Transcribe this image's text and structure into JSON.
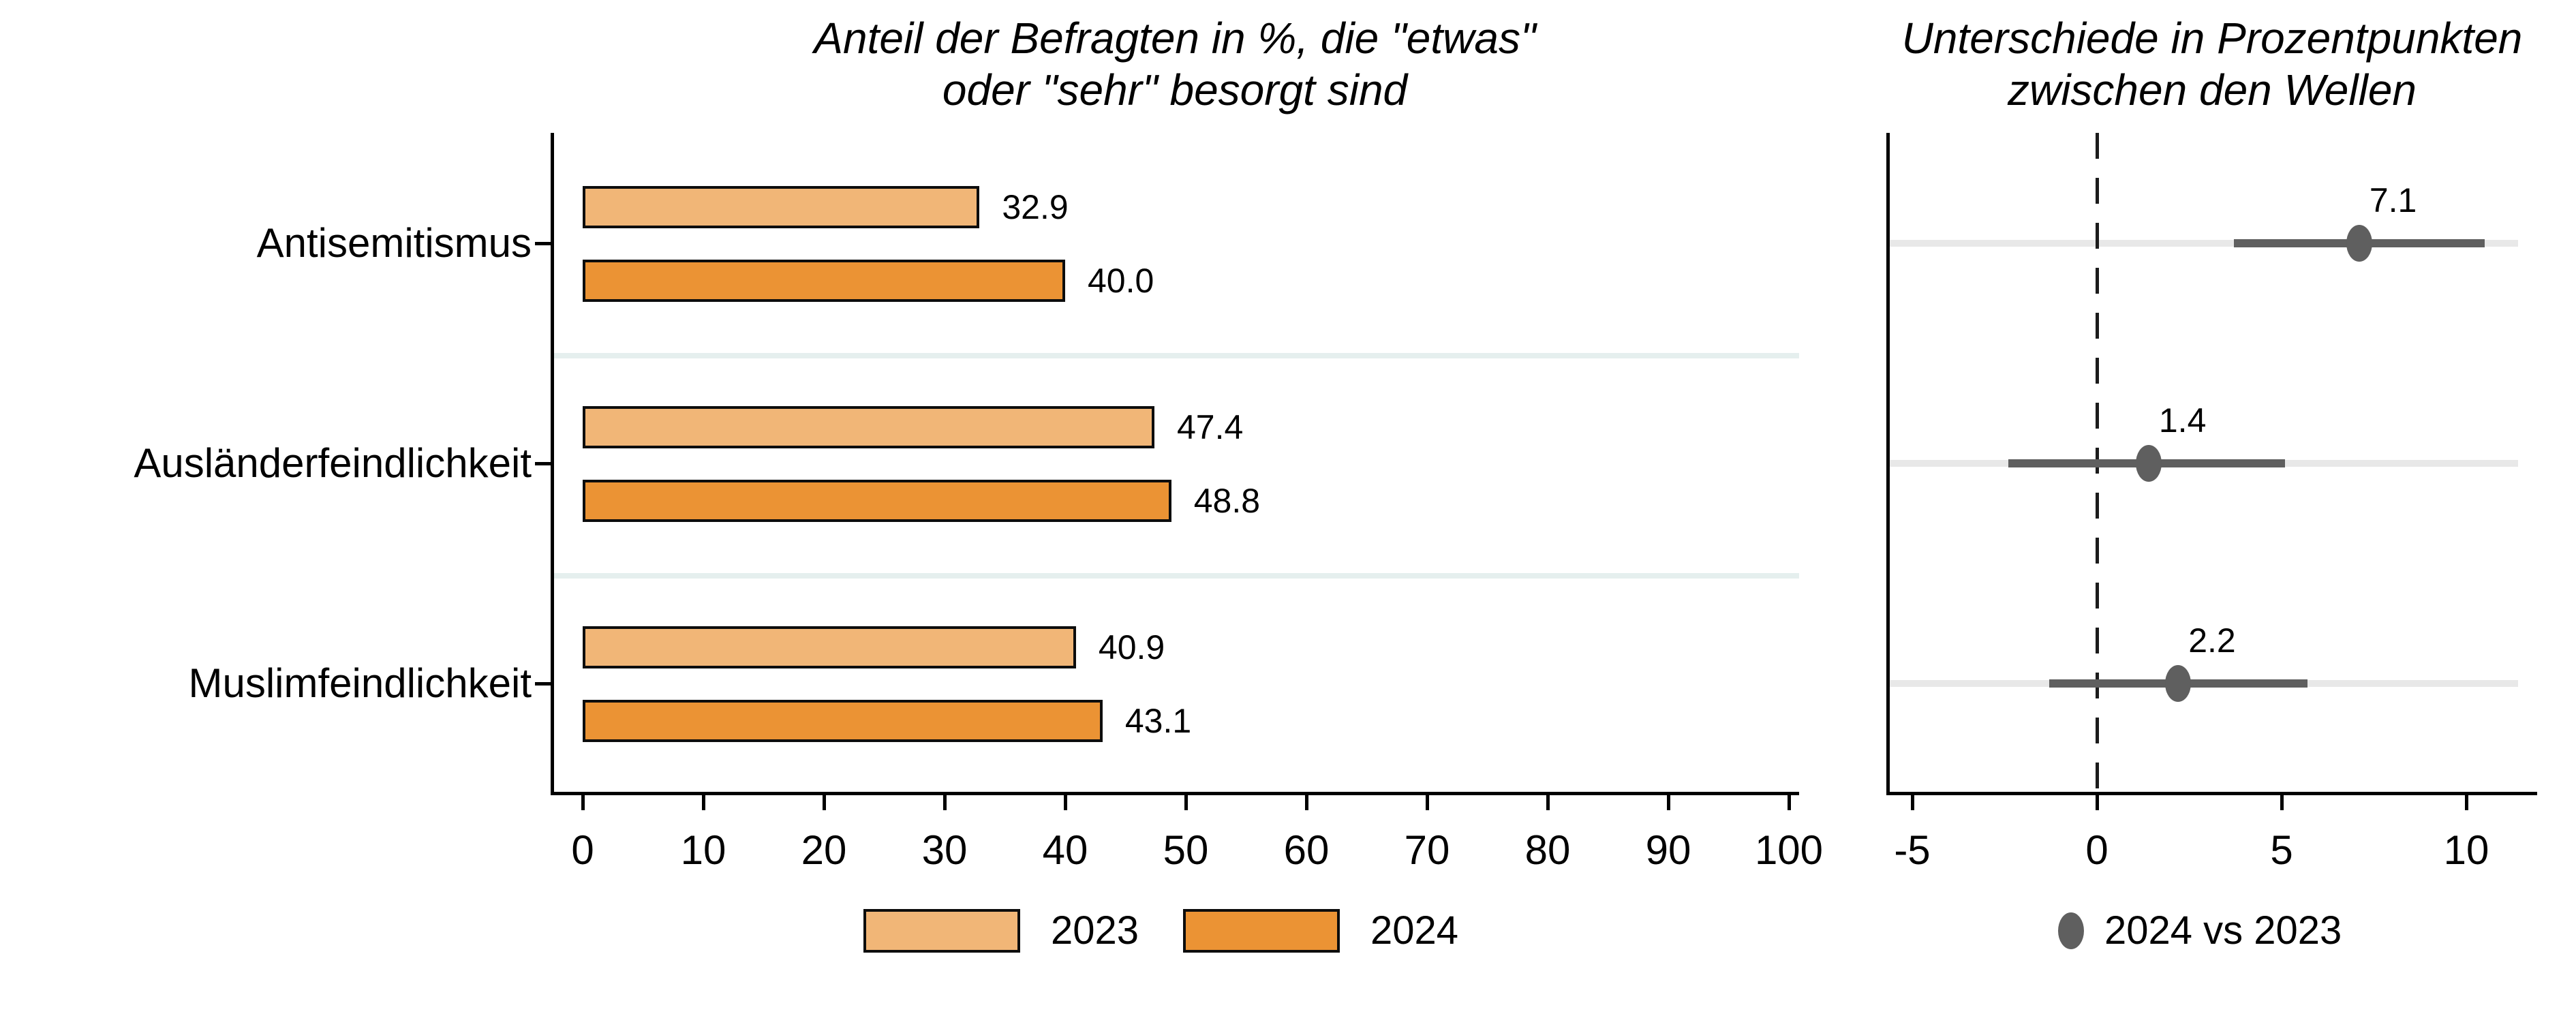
{
  "figure": {
    "background": "#ffffff"
  },
  "colors": {
    "series_2023": "#F1B677",
    "series_2024": "#EB9334",
    "diff_gray": "#5F5F5F",
    "grid_left": "#E5EFEE",
    "grid_right": "#E8E8E8",
    "axis": "#000000",
    "bar_outline": "#0d0d0d"
  },
  "chart_data": [
    {
      "type": "bar",
      "orientation": "horizontal",
      "title": "Anteil der Befragten in %, die \"etwas\" oder \"sehr\" besorgt sind",
      "title_lines": [
        "Anteil der Befragten in %, die \"etwas\"",
        "oder \"sehr\" besorgt sind"
      ],
      "categories": [
        "Antisemitismus",
        "Ausländerfeindlichkeit",
        "Muslimfeindlichkeit"
      ],
      "series": [
        {
          "name": "2023",
          "color": "#F1B677",
          "values": [
            32.9,
            47.4,
            40.9
          ]
        },
        {
          "name": "2024",
          "color": "#EB9334",
          "values": [
            40.0,
            48.8,
            43.1
          ]
        }
      ],
      "value_labels": [
        [
          "32.9",
          "47.4",
          "40.9"
        ],
        [
          "40.0",
          "48.8",
          "43.1"
        ]
      ],
      "xlabel": "",
      "ylabel": "",
      "xlim": [
        0,
        103.5
      ],
      "xticks": [
        0,
        10,
        20,
        30,
        40,
        50,
        60,
        70,
        80,
        90,
        100
      ],
      "grid": "separator-lines-between-categories",
      "legend_position": "below-center"
    },
    {
      "type": "scatter",
      "subtype": "dot-with-confidence-interval",
      "title": "Unterschiede in Prozentpunkten zwischen den Wellen",
      "title_lines": [
        "Unterschiede in Prozentpunkten",
        "zwischen den Wellen"
      ],
      "categories": [
        "Antisemitismus",
        "Ausländerfeindlichkeit",
        "Muslimfeindlichkeit"
      ],
      "series": [
        {
          "name": "2024 vs 2023",
          "color": "#5F5F5F",
          "points": [
            {
              "category": "Antisemitismus",
              "value": 7.1,
              "label": "7.1",
              "ci_low": 3.7,
              "ci_high": 10.5
            },
            {
              "category": "Ausländerfeindlichkeit",
              "value": 1.4,
              "label": "1.4",
              "ci_low": -2.4,
              "ci_high": 5.1
            },
            {
              "category": "Muslimfeindlichkeit",
              "value": 2.2,
              "label": "2.2",
              "ci_low": -1.3,
              "ci_high": 5.7
            }
          ]
        }
      ],
      "xlabel": "",
      "ylabel": "",
      "xlim": [
        -5.7,
        11.9
      ],
      "xticks": [
        -5,
        0,
        5,
        10
      ],
      "zero_reference_line": "dashed-vertical",
      "grid": "light-horizontal-line-per-category",
      "legend_position": "below-center"
    }
  ]
}
